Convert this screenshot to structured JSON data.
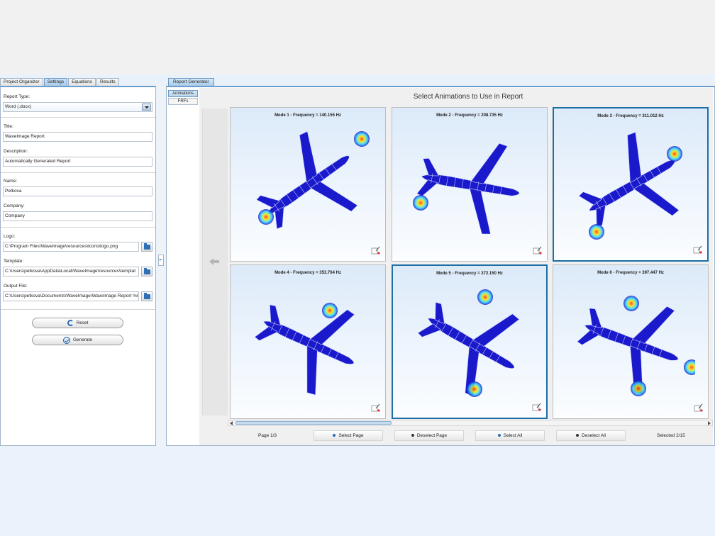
{
  "left_tabs": [
    "Project Organizer",
    "Settings",
    "Equations",
    "Results"
  ],
  "settings": {
    "report_type_label": "Report Type:",
    "report_type_value": "Word (.docx)",
    "title_label": "Title:",
    "title_value": "WaveImage Report",
    "description_label": "Description:",
    "description_value": "Automatically Generated Report",
    "name_label": "Name:",
    "name_value": "Petkova",
    "company_label": "Company:",
    "company_value": "Company",
    "logo_label": "Logo:",
    "logo_value": "C:\\Program Files\\WaveImage\\resources\\icons\\logo.png",
    "template_label": "Template:",
    "template_value": "C:\\Users\\petkova\\AppData\\Local\\WaveImage\\resources\\templat",
    "output_label": "Output File:",
    "output_value": "C:\\Users\\petkova\\Documents\\WaveImage\\WaveImage Report %l",
    "reset_label": "Reset",
    "generate_label": "Generate"
  },
  "report_generator": {
    "tab_label": "Report Generator",
    "side_tabs": [
      "Animations",
      "FRFs"
    ],
    "title": "Select Animations to Use in Report",
    "cards": [
      {
        "title": "Mode 1 - Frequency = 140.155 Hz"
      },
      {
        "title": "Mode 2 - Frequency = 208.735 Hz"
      },
      {
        "title": "Mode 3 - Frequency = 311.012 Hz"
      },
      {
        "title": "Mode 4 - Frequency = 353.764 Hz"
      },
      {
        "title": "Mode 5 - Frequency = 372.150 Hz"
      },
      {
        "title": "Mode 6 - Frequency = 397.447 Hz"
      }
    ],
    "page_label": "Page 1/3",
    "select_page": "Select Page",
    "deselect_page": "Deselect Page",
    "select_all": "Select All",
    "deselect_all": "Deselect All",
    "selected_label": "Selected 2/15"
  },
  "colors": {
    "accent": "#1c6ea4",
    "plane_base": "#1a1acc",
    "select_dot": "#2d6cb1",
    "deselect_dot": "#333333"
  }
}
